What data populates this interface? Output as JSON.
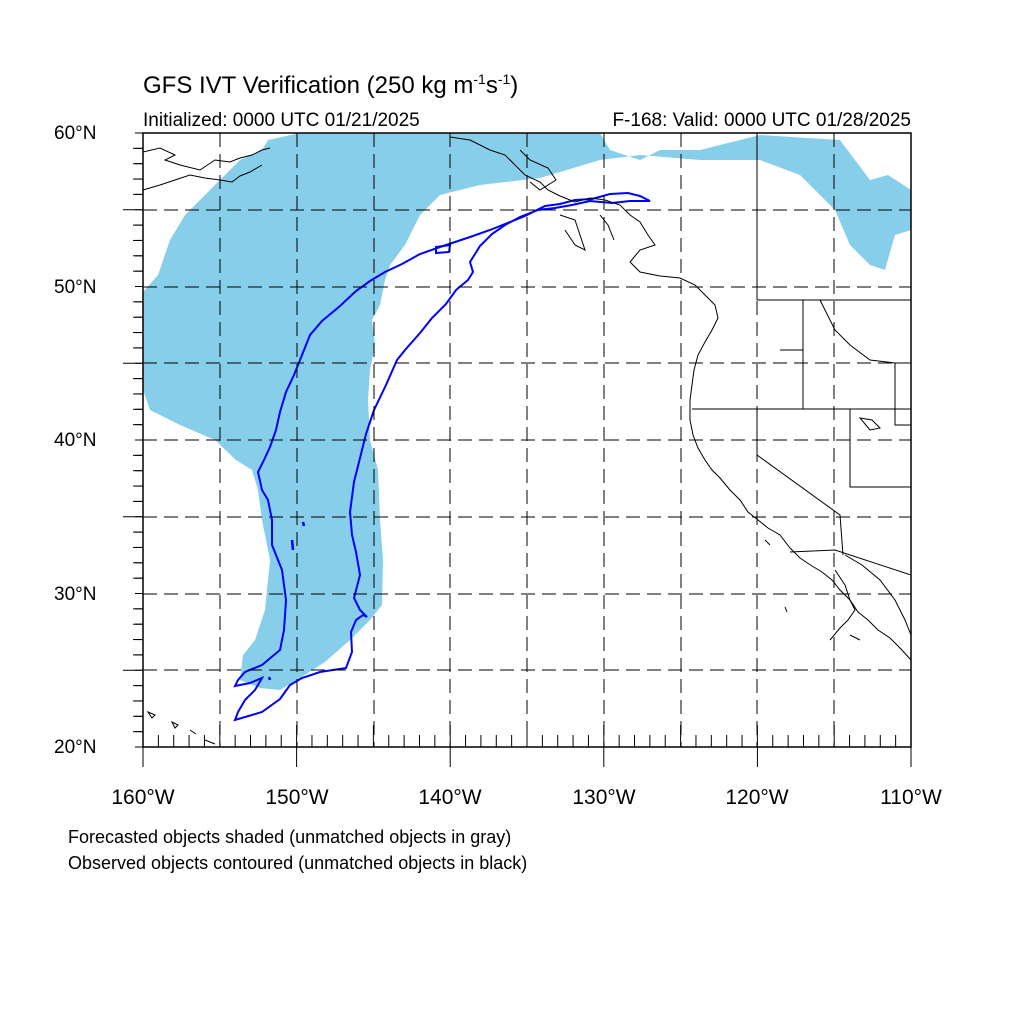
{
  "title": {
    "main": "GFS IVT Verification (250 kg m",
    "exp1": "-1",
    "mid": "s",
    "exp2": "-1",
    "end": ")"
  },
  "subtitle_left": "Initialized: 0000 UTC 01/21/2025",
  "subtitle_right": "F-168: Valid: 0000 UTC 01/28/2025",
  "lat_labels": [
    "60°N",
    "50°N",
    "40°N",
    "30°N",
    "20°N"
  ],
  "lon_labels": [
    "160°W",
    "150°W",
    "140°W",
    "130°W",
    "120°W",
    "110°W"
  ],
  "notes": [
    "Forecasted objects shaded (unmatched objects in gray)",
    "Observed objects contoured (unmatched objects in black)"
  ],
  "colors": {
    "forecast_fill": "#87ceeb",
    "observed_contour": "#0000ff",
    "coast": "#000000"
  },
  "map": {
    "projection": "cylindrical equidistant",
    "lon_range": [
      -160,
      -110
    ],
    "lat_range": [
      20,
      60
    ],
    "gridlines": "dashed, every 5 degrees"
  }
}
